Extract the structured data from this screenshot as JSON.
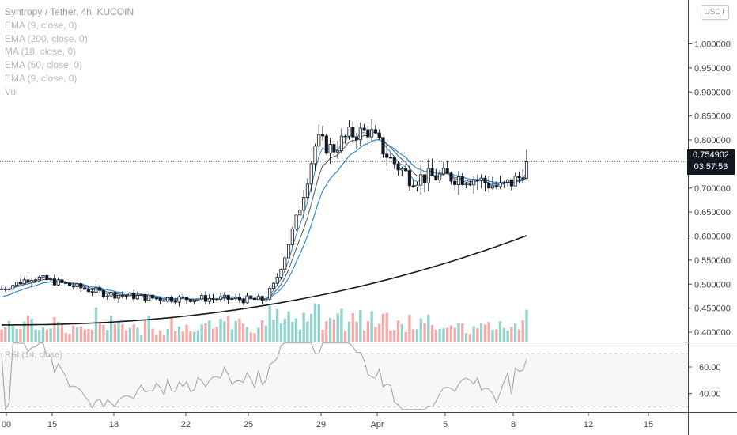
{
  "legend": {
    "title": "Syntropy / Tether, 4h, KUCOIN",
    "indicators": [
      "EMA (9, close, 0)",
      "EMA (200, close, 0)",
      "MA (18, close, 0)",
      "EMA (50, close, 0)",
      "EMA (9, close, 0)",
      "Vol"
    ]
  },
  "currency_button": "USDT",
  "current_price": "0.754902",
  "countdown": "03:57:53",
  "rsi_label": "RSI (14, close)",
  "colors": {
    "up": "#26a69a",
    "down": "#ef5350",
    "candle_body": "#131722",
    "ema_blue": "#2f8bd6",
    "ema200": "#131722",
    "ma18": "#555555",
    "rsi": "#9aa0a6"
  },
  "chart_data": {
    "type": "candlestick",
    "x_tick_labels": [
      "00",
      "15",
      "18",
      "22",
      "25",
      "29",
      "Apr",
      "5",
      "8",
      "12",
      "15"
    ],
    "price_axis_labels": [
      "1.000000",
      "0.950000",
      "0.900000",
      "0.850000",
      "0.800000",
      "0.700000",
      "0.650000",
      "0.600000",
      "0.550000",
      "0.500000",
      "0.450000",
      "0.400000"
    ],
    "price_range": [
      0.38,
      1.05
    ],
    "rsi_axis_labels": [
      "60.00",
      "40.00"
    ],
    "rsi_levels": [
      70,
      30
    ],
    "rsi_range": [
      20,
      80
    ],
    "current_price": 0.754902,
    "ema200_end": 0.601,
    "ma18_end": 0.72,
    "ema50_end": 0.718
  }
}
